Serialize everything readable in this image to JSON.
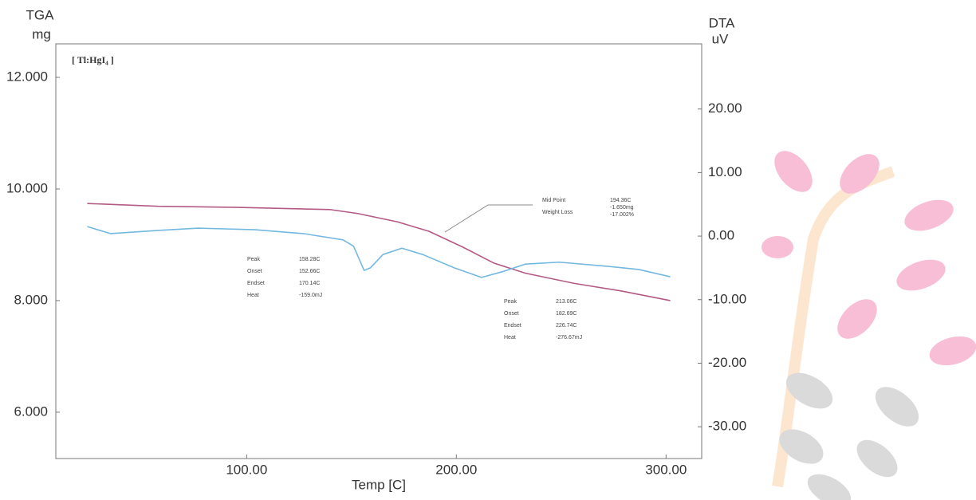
{
  "chart_data": {
    "type": "line",
    "sample_label": "[ Tl:HgI₄ ]",
    "ylabel": [
      "TGA",
      "mg"
    ],
    "y2label": [
      "DTA",
      "uV"
    ],
    "xlabel": "Temp  [C]",
    "xlim": [
      9,
      317
    ],
    "xticks": [
      {
        "value": 100,
        "label": "100.00"
      },
      {
        "value": 200,
        "label": "200.00"
      },
      {
        "value": 300,
        "label": "300.00"
      }
    ],
    "ylim": [
      5.17,
      12.6
    ],
    "yticks": [
      {
        "value": 6,
        "label": "6.000"
      },
      {
        "value": 8,
        "label": "8.000"
      },
      {
        "value": 10,
        "label": "10.000"
      },
      {
        "value": 12,
        "label": "12.000"
      }
    ],
    "y2lim": [
      -35,
      30.25
    ],
    "y2ticks": [
      {
        "value": -30,
        "label": "-30.00"
      },
      {
        "value": -20,
        "label": "-20.00"
      },
      {
        "value": -10,
        "label": "-10.00"
      },
      {
        "value": 0,
        "label": "0.00"
      },
      {
        "value": 10,
        "label": "10.00"
      },
      {
        "value": 20,
        "label": "20.00"
      }
    ],
    "series": [
      {
        "name": "TGA",
        "color": "#b45a84",
        "axis": "y",
        "x": [
          24,
          58,
          96,
          140,
          153,
          172,
          187,
          203,
          218,
          233,
          256,
          279,
          302
        ],
        "values": [
          9.74,
          9.69,
          9.67,
          9.63,
          9.56,
          9.41,
          9.24,
          8.96,
          8.67,
          8.49,
          8.31,
          8.17,
          8.0
        ]
      },
      {
        "name": "DTA",
        "color": "#74b8e0",
        "axis": "y2",
        "x": [
          24,
          35,
          58,
          77,
          104,
          127,
          146,
          151,
          156,
          159,
          165,
          174,
          184,
          199,
          212,
          222,
          233,
          249,
          272,
          287,
          302
        ],
        "values": [
          1.5,
          0.4,
          0.9,
          1.25,
          1.0,
          0.4,
          -0.6,
          -1.6,
          -5.4,
          -5.0,
          -2.9,
          -1.9,
          -2.9,
          -5.0,
          -6.5,
          -5.6,
          -4.4,
          -4.1,
          -4.75,
          -5.25,
          -6.4
        ]
      }
    ],
    "annotations": [
      {
        "rows": [
          {
            "label": "Peak",
            "values": [
              "158.28C"
            ]
          },
          {
            "label": "Onset",
            "values": [
              "152.66C"
            ]
          },
          {
            "label": "Endset",
            "values": [
              "170.14C"
            ]
          },
          {
            "label": "Heat",
            "values": [
              "-159.0mJ"
            ]
          }
        ]
      },
      {
        "rows": [
          {
            "label": "Peak",
            "values": [
              "213.06C"
            ]
          },
          {
            "label": "Onset",
            "values": [
              "182.69C"
            ]
          },
          {
            "label": "Endset",
            "values": [
              "226.74C"
            ]
          },
          {
            "label": "Heat",
            "values": [
              "-276.67mJ"
            ]
          }
        ]
      },
      {
        "rows": [
          {
            "label": "Mid Point",
            "values": [
              "194.36C"
            ]
          },
          {
            "label": "Weight Loss",
            "values": [
              "-1.650mg",
              "-17.002%"
            ]
          }
        ]
      }
    ]
  }
}
